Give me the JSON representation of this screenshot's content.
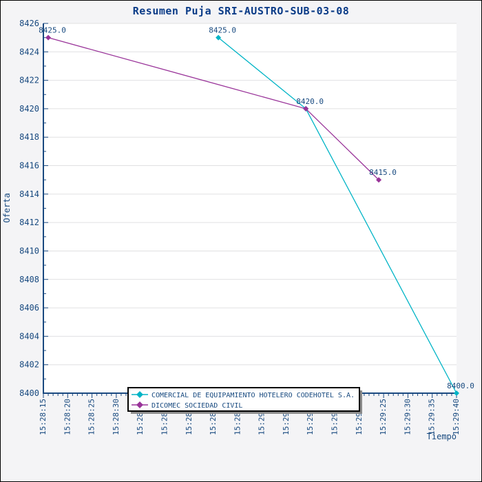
{
  "chart_data": {
    "type": "line",
    "title": "Resumen Puja SRI-AUSTRO-SUB-03-08",
    "xlabel": "Tiempo",
    "ylabel": "Oferta",
    "grid": "horizontal",
    "legend_position": "bottom-center",
    "x_axis": {
      "start": "15:28:15",
      "end": "15:29:40",
      "major_step_seconds": 5,
      "minor_step_seconds": 1,
      "tick_labels": [
        "15:28:15",
        "15:28:20",
        "15:28:25",
        "15:28:30",
        "15:28:35",
        "15:28:40",
        "15:28:45",
        "15:28:50",
        "15:28:55",
        "15:29:00",
        "15:29:05",
        "15:29:10",
        "15:29:15",
        "15:29:20",
        "15:29:25",
        "15:29:30",
        "15:29:35",
        "15:29:40"
      ]
    },
    "y_axis": {
      "min": 8400,
      "max": 8426,
      "major_step": 2,
      "minor_step": 1
    },
    "series": [
      {
        "name": "COMERCIAL DE EQUIPAMIENTO HOTELERO CODEHOTEL S.A.",
        "color": "#00B4C6",
        "points": [
          {
            "time": "15:28:51",
            "value": 8425,
            "label": "8425.0"
          },
          {
            "time": "15:29:09",
            "value": 8420,
            "label": null
          },
          {
            "time": "15:29:40",
            "value": 8400,
            "label": "8400.0"
          }
        ]
      },
      {
        "name": "DICOMEC SOCIEDAD CIVIL",
        "color": "#993399",
        "points": [
          {
            "time": "15:28:16",
            "value": 8425,
            "label": "8425.0"
          },
          {
            "time": "15:29:09",
            "value": 8420,
            "label": "8420.0"
          },
          {
            "time": "15:29:24",
            "value": 8415,
            "label": "8415.0"
          }
        ]
      }
    ],
    "colors": {
      "text": "#17497F",
      "title": "#0A3B87",
      "axis": "#1A4980",
      "grid": "#E0E0E2",
      "plot_bg": "#FFFFFF",
      "figure_bg": "#F4F4F6",
      "legend_border": "#000000",
      "legend_shadow": "#8A8A8A"
    }
  }
}
